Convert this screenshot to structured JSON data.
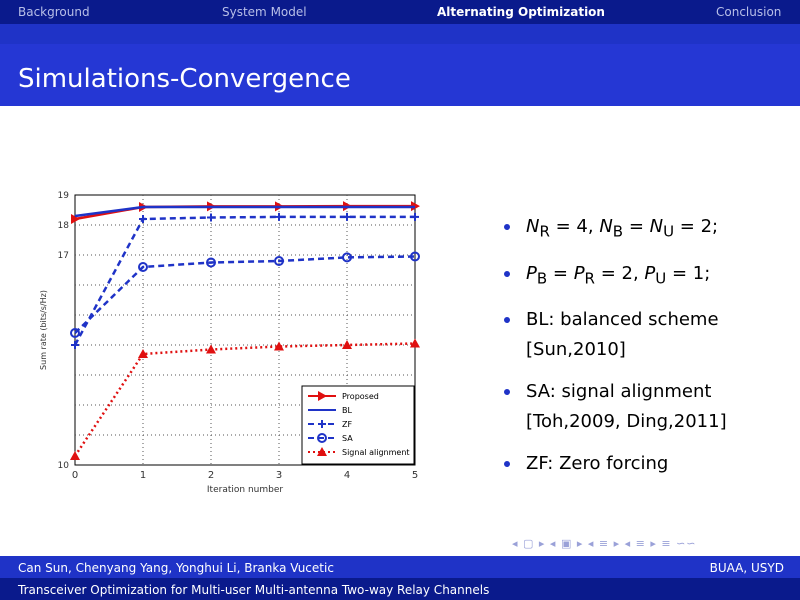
{
  "nav": {
    "sections": [
      {
        "label": "Background",
        "active": false
      },
      {
        "label": "System Model",
        "active": false
      },
      {
        "label": "Alternating Optimization",
        "active": true
      },
      {
        "label": "Conclusion",
        "active": false
      }
    ]
  },
  "slide": {
    "title": "Simulations-Convergence"
  },
  "bullets": [
    {
      "html": "<i>N</i><sub>R</sub> = 4, <i>N</i><sub>B</sub> = <i>N</i><sub>U</sub> = 2;"
    },
    {
      "html": "<i>P</i><sub>B</sub> = <i>P</i><sub>R</sub> = 2, <i>P</i><sub>U</sub> = 1;"
    },
    {
      "html": "BL: balanced scheme [Sun,2010]"
    },
    {
      "html": "SA: signal alignment [Toh,2009, Ding,2011]"
    },
    {
      "html": "ZF: Zero forcing"
    }
  ],
  "beamer_nav": "◂ ▢ ▸ ◂ ▣ ▸ ◂ ≡ ▸ ◂ ≡ ▸ ≡ ∽∽",
  "footer": {
    "authors": "Can Sun, Chenyang Yang, Yonghui Li, Branka Vucetic",
    "affiliation": "BUAA, USYD",
    "talk_title": "Transceiver Optimization for Multi-user Multi-antenna Two-way Relay Channels"
  },
  "chart_data": {
    "type": "line",
    "xlabel": "Iteration number",
    "ylabel": "Sum rate (bits/s/Hz)",
    "xlim": [
      0,
      5
    ],
    "ylim": [
      10,
      19
    ],
    "xticks": [
      0,
      1,
      2,
      3,
      4,
      5
    ],
    "yticks": [
      10,
      11,
      12,
      13,
      14,
      15,
      16,
      17,
      18,
      19
    ],
    "ytick_labels": [
      "10",
      "",
      "",
      "",
      "",
      "",
      "",
      "17",
      "18",
      "19"
    ],
    "grid": true,
    "legend_position": "bottom-right",
    "x": [
      0,
      1,
      2,
      3,
      4,
      5
    ],
    "series": [
      {
        "name": "Proposed",
        "color": "#e01010",
        "dash": "",
        "marker": "triangle-right",
        "values": [
          18.2,
          18.6,
          18.62,
          18.62,
          18.63,
          18.63
        ]
      },
      {
        "name": "BL",
        "color": "#1f33c7",
        "dash": "",
        "marker": "none",
        "values": [
          18.3,
          18.6,
          18.6,
          18.6,
          18.6,
          18.6
        ]
      },
      {
        "name": "ZF",
        "color": "#1f33c7",
        "dash": "6,4",
        "marker": "plus",
        "values": [
          14.0,
          18.2,
          18.25,
          18.27,
          18.27,
          18.27
        ]
      },
      {
        "name": "SA",
        "color": "#1f33c7",
        "dash": "6,4",
        "marker": "circle",
        "values": [
          14.4,
          16.6,
          16.75,
          16.8,
          16.92,
          16.95
        ]
      },
      {
        "name": "Signal alignment",
        "color": "#e01010",
        "dash": "2,3",
        "marker": "triangle",
        "values": [
          10.3,
          13.7,
          13.85,
          13.95,
          14.0,
          14.05
        ]
      }
    ]
  }
}
